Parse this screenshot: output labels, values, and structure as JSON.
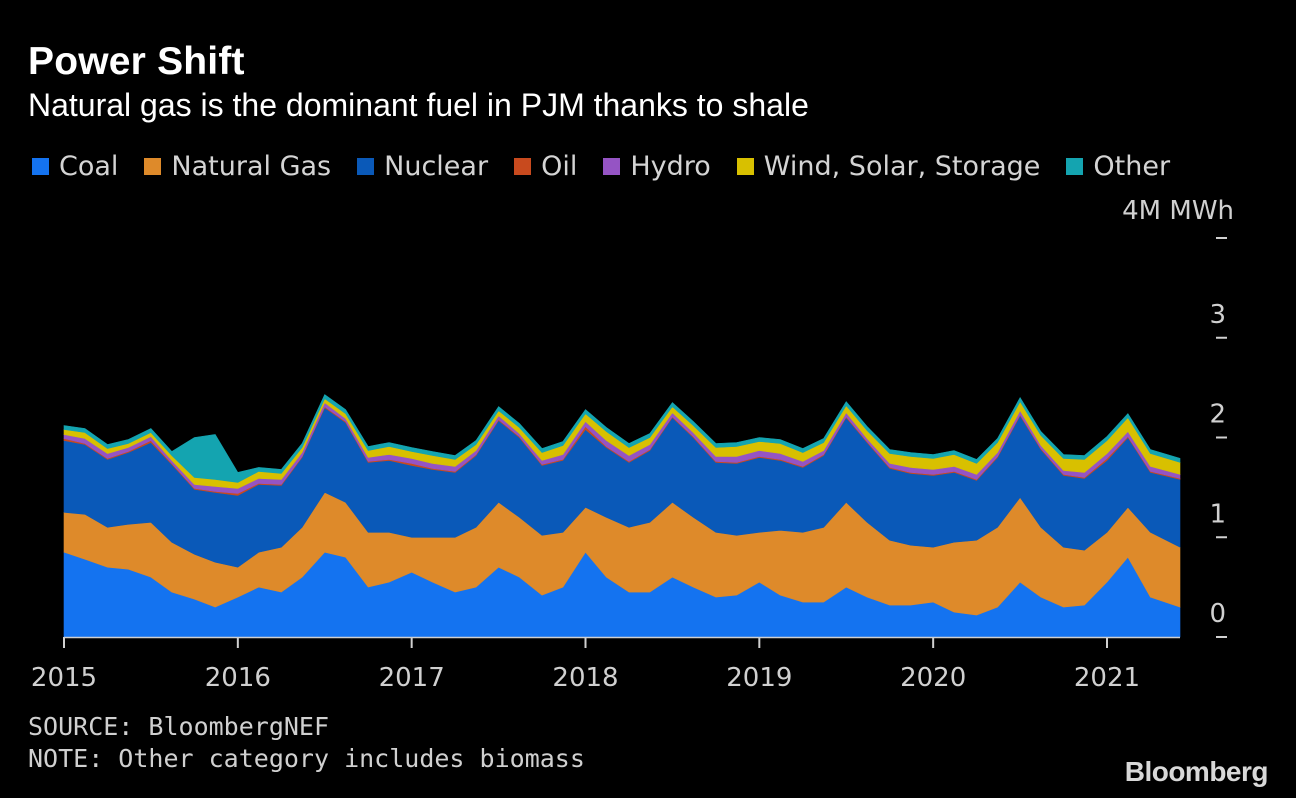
{
  "header": {
    "title": "Power Shift",
    "subtitle": "Natural gas is the dominant fuel in PJM thanks to shale"
  },
  "legend": [
    {
      "label": "Coal",
      "color": "#1473F0"
    },
    {
      "label": "Natural Gas",
      "color": "#DE8A2A"
    },
    {
      "label": "Nuclear",
      "color": "#0A59B8"
    },
    {
      "label": "Oil",
      "color": "#C84A1E"
    },
    {
      "label": "Hydro",
      "color": "#9554C4"
    },
    {
      "label": "Wind, Solar, Storage",
      "color": "#D8C000"
    },
    {
      "label": "Other",
      "color": "#14A4B0"
    }
  ],
  "footer": {
    "source": "SOURCE: BloombergNEF",
    "note": "NOTE: Other category includes biomass",
    "brand": "Bloomberg"
  },
  "chart_data": {
    "type": "area",
    "stacked": true,
    "unit_label": "4M MWh",
    "ylim": [
      0,
      4
    ],
    "y_ticks": [
      {
        "value": 0,
        "label": "0"
      },
      {
        "value": 1,
        "label": "1"
      },
      {
        "value": 2,
        "label": "2"
      },
      {
        "value": 3,
        "label": "3"
      },
      {
        "value": 4,
        "label": ""
      }
    ],
    "x_ticks": [
      "2015",
      "2016",
      "2017",
      "2018",
      "2019",
      "2020",
      "2021"
    ],
    "xlim": [
      2015.0,
      2021.42
    ],
    "x": [
      2015.0,
      2015.12,
      2015.25,
      2015.37,
      2015.5,
      2015.62,
      2015.75,
      2015.87,
      2016.0,
      2016.12,
      2016.25,
      2016.37,
      2016.5,
      2016.62,
      2016.75,
      2016.87,
      2017.0,
      2017.12,
      2017.25,
      2017.37,
      2017.5,
      2017.62,
      2017.75,
      2017.87,
      2018.0,
      2018.12,
      2018.25,
      2018.37,
      2018.5,
      2018.62,
      2018.75,
      2018.87,
      2019.0,
      2019.12,
      2019.25,
      2019.37,
      2019.5,
      2019.62,
      2019.75,
      2019.87,
      2020.0,
      2020.12,
      2020.25,
      2020.37,
      2020.5,
      2020.62,
      2020.75,
      2020.87,
      2021.0,
      2021.12,
      2021.25,
      2021.42
    ],
    "series": [
      {
        "name": "Coal",
        "values": [
          0.85,
          0.78,
          0.7,
          0.68,
          0.6,
          0.45,
          0.38,
          0.3,
          0.4,
          0.5,
          0.45,
          0.6,
          0.85,
          0.8,
          0.5,
          0.55,
          0.65,
          0.55,
          0.45,
          0.5,
          0.7,
          0.6,
          0.42,
          0.5,
          0.85,
          0.6,
          0.45,
          0.45,
          0.6,
          0.5,
          0.4,
          0.42,
          0.55,
          0.42,
          0.35,
          0.35,
          0.5,
          0.4,
          0.32,
          0.32,
          0.35,
          0.25,
          0.22,
          0.3,
          0.55,
          0.4,
          0.3,
          0.32,
          0.55,
          0.8,
          0.4,
          0.3
        ]
      },
      {
        "name": "Natural Gas",
        "values": [
          0.4,
          0.45,
          0.4,
          0.45,
          0.55,
          0.5,
          0.45,
          0.45,
          0.3,
          0.35,
          0.45,
          0.5,
          0.6,
          0.55,
          0.55,
          0.5,
          0.35,
          0.45,
          0.55,
          0.6,
          0.65,
          0.6,
          0.6,
          0.55,
          0.45,
          0.6,
          0.65,
          0.7,
          0.75,
          0.7,
          0.65,
          0.6,
          0.5,
          0.65,
          0.7,
          0.75,
          0.85,
          0.75,
          0.65,
          0.6,
          0.55,
          0.7,
          0.75,
          0.8,
          0.85,
          0.7,
          0.6,
          0.55,
          0.5,
          0.5,
          0.65,
          0.6
        ]
      },
      {
        "name": "Nuclear",
        "values": [
          0.72,
          0.7,
          0.68,
          0.72,
          0.8,
          0.78,
          0.65,
          0.7,
          0.72,
          0.68,
          0.62,
          0.7,
          0.85,
          0.8,
          0.7,
          0.72,
          0.72,
          0.68,
          0.65,
          0.72,
          0.82,
          0.8,
          0.7,
          0.72,
          0.78,
          0.7,
          0.65,
          0.72,
          0.85,
          0.8,
          0.7,
          0.72,
          0.75,
          0.7,
          0.65,
          0.72,
          0.85,
          0.8,
          0.72,
          0.72,
          0.72,
          0.7,
          0.6,
          0.7,
          0.82,
          0.78,
          0.72,
          0.72,
          0.72,
          0.7,
          0.6,
          0.68
        ]
      },
      {
        "name": "Oil",
        "values": [
          0.02,
          0.01,
          0.01,
          0.01,
          0.02,
          0.01,
          0.01,
          0.01,
          0.02,
          0.01,
          0.01,
          0.01,
          0.01,
          0.01,
          0.01,
          0.01,
          0.02,
          0.01,
          0.01,
          0.01,
          0.01,
          0.01,
          0.01,
          0.01,
          0.03,
          0.01,
          0.01,
          0.01,
          0.01,
          0.01,
          0.01,
          0.01,
          0.01,
          0.01,
          0.01,
          0.01,
          0.01,
          0.01,
          0.01,
          0.01,
          0.01,
          0.01,
          0.01,
          0.01,
          0.01,
          0.01,
          0.01,
          0.01,
          0.02,
          0.01,
          0.01,
          0.01
        ]
      },
      {
        "name": "Hydro",
        "values": [
          0.04,
          0.05,
          0.05,
          0.04,
          0.04,
          0.03,
          0.04,
          0.05,
          0.05,
          0.05,
          0.05,
          0.04,
          0.04,
          0.03,
          0.04,
          0.05,
          0.05,
          0.05,
          0.05,
          0.04,
          0.04,
          0.03,
          0.04,
          0.05,
          0.05,
          0.06,
          0.06,
          0.05,
          0.04,
          0.04,
          0.05,
          0.06,
          0.06,
          0.06,
          0.05,
          0.04,
          0.04,
          0.03,
          0.04,
          0.05,
          0.05,
          0.05,
          0.05,
          0.04,
          0.04,
          0.03,
          0.04,
          0.05,
          0.05,
          0.05,
          0.05,
          0.04
        ]
      },
      {
        "name": "Wind, Solar, Storage",
        "values": [
          0.05,
          0.06,
          0.05,
          0.04,
          0.04,
          0.05,
          0.07,
          0.07,
          0.06,
          0.07,
          0.06,
          0.05,
          0.04,
          0.05,
          0.07,
          0.08,
          0.07,
          0.08,
          0.07,
          0.06,
          0.05,
          0.06,
          0.08,
          0.09,
          0.08,
          0.09,
          0.08,
          0.07,
          0.06,
          0.07,
          0.09,
          0.1,
          0.09,
          0.1,
          0.09,
          0.08,
          0.07,
          0.08,
          0.1,
          0.11,
          0.11,
          0.12,
          0.11,
          0.1,
          0.09,
          0.1,
          0.12,
          0.13,
          0.13,
          0.14,
          0.13,
          0.12
        ]
      },
      {
        "name": "Other",
        "values": [
          0.04,
          0.04,
          0.04,
          0.04,
          0.04,
          0.04,
          0.4,
          0.45,
          0.1,
          0.04,
          0.04,
          0.04,
          0.04,
          0.04,
          0.04,
          0.04,
          0.04,
          0.04,
          0.04,
          0.04,
          0.04,
          0.04,
          0.04,
          0.04,
          0.04,
          0.04,
          0.04,
          0.04,
          0.04,
          0.04,
          0.04,
          0.04,
          0.04,
          0.04,
          0.04,
          0.04,
          0.04,
          0.04,
          0.04,
          0.04,
          0.04,
          0.04,
          0.04,
          0.04,
          0.04,
          0.04,
          0.04,
          0.04,
          0.04,
          0.04,
          0.04,
          0.04
        ]
      }
    ]
  }
}
